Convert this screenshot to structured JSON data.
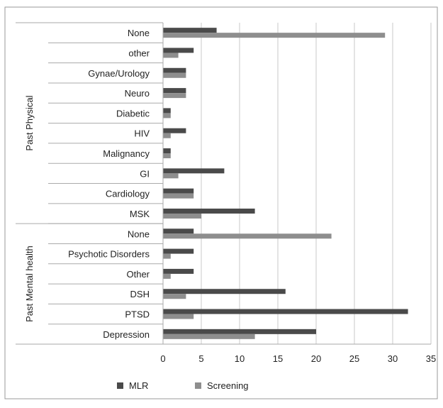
{
  "chart_data": {
    "type": "bar",
    "orientation": "horizontal",
    "groups": [
      {
        "name": "Past Physical",
        "categories": [
          "None",
          "other",
          "Gynae/Urology",
          "Neuro",
          "Diabetic",
          "HIV",
          "Malignancy",
          "GI",
          "Cardiology",
          "MSK"
        ]
      },
      {
        "name": "Past Mental health",
        "categories": [
          "None",
          "Psychotic Disorders",
          "Other",
          "DSH",
          "PTSD",
          "Depression"
        ]
      }
    ],
    "series": [
      {
        "name": "MLR",
        "color": "#4a4a4a",
        "values": [
          7,
          4,
          3,
          3,
          1,
          3,
          1,
          8,
          4,
          12,
          4,
          4,
          4,
          16,
          32,
          20
        ]
      },
      {
        "name": "Screening",
        "color": "#8e8e8e",
        "values": [
          29,
          2,
          3,
          3,
          1,
          1,
          1,
          2,
          4,
          5,
          22,
          1,
          1,
          3,
          4,
          12
        ]
      }
    ],
    "x_ticks": [
      "0",
      "5",
      "10",
      "15",
      "20",
      "25",
      "30",
      "35"
    ],
    "xlim": [
      0,
      35
    ],
    "grid": true,
    "legend": "bottom"
  }
}
